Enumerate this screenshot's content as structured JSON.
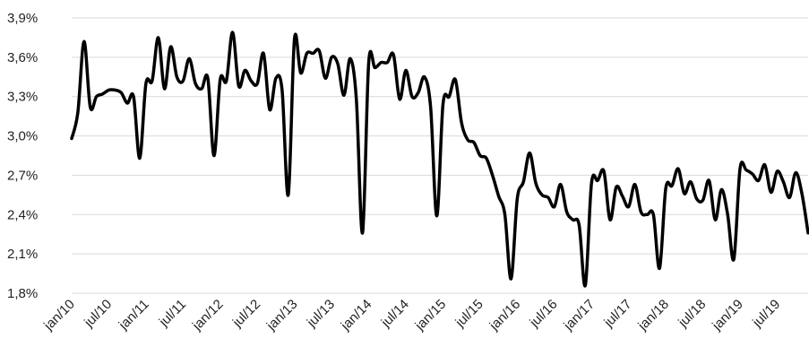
{
  "chart_data": {
    "type": "line",
    "title": "",
    "xlabel": "",
    "ylabel": "",
    "ylim": [
      1.8,
      3.9
    ],
    "y_ticks": [
      "1,8%",
      "2,1%",
      "2,4%",
      "2,7%",
      "3,0%",
      "3,3%",
      "3,6%",
      "3,9%"
    ],
    "y_tick_values": [
      1.8,
      2.1,
      2.4,
      2.7,
      3.0,
      3.3,
      3.6,
      3.9
    ],
    "x_ticks": [
      "jan/10",
      "jul/10",
      "jan/11",
      "jul/11",
      "jan/12",
      "jul/12",
      "jan/13",
      "jul/13",
      "jan/14",
      "jul/14",
      "jan/15",
      "jul/15",
      "jan/16",
      "jul/16",
      "jan/17",
      "jul/17",
      "jan/18",
      "jul/18",
      "jan/19",
      "jul/19"
    ],
    "x_tick_index": [
      0,
      6,
      12,
      18,
      24,
      30,
      36,
      42,
      48,
      54,
      60,
      66,
      72,
      78,
      84,
      90,
      96,
      102,
      108,
      114
    ],
    "grid": "horizontal",
    "legend": "none",
    "series": [
      {
        "values": [
          2.98,
          3.18,
          3.72,
          3.22,
          3.3,
          3.32,
          3.35,
          3.35,
          3.33,
          3.25,
          3.3,
          2.83,
          3.4,
          3.42,
          3.75,
          3.36,
          3.68,
          3.45,
          3.42,
          3.59,
          3.4,
          3.36,
          3.44,
          2.85,
          3.43,
          3.42,
          3.79,
          3.38,
          3.5,
          3.42,
          3.4,
          3.63,
          3.2,
          3.44,
          3.35,
          2.55,
          3.74,
          3.48,
          3.63,
          3.63,
          3.65,
          3.44,
          3.6,
          3.55,
          3.31,
          3.59,
          3.28,
          2.26,
          3.56,
          3.52,
          3.56,
          3.56,
          3.62,
          3.28,
          3.5,
          3.3,
          3.33,
          3.45,
          3.22,
          2.39,
          3.24,
          3.3,
          3.43,
          3.1,
          2.97,
          2.95,
          2.85,
          2.83,
          2.7,
          2.54,
          2.4,
          1.91,
          2.52,
          2.65,
          2.87,
          2.64,
          2.55,
          2.53,
          2.46,
          2.63,
          2.42,
          2.36,
          2.32,
          1.86,
          2.64,
          2.66,
          2.73,
          2.36,
          2.61,
          2.54,
          2.46,
          2.63,
          2.42,
          2.4,
          2.4,
          1.99,
          2.6,
          2.62,
          2.75,
          2.56,
          2.65,
          2.52,
          2.51,
          2.66,
          2.36,
          2.59,
          2.4,
          2.06,
          2.75,
          2.74,
          2.71,
          2.66,
          2.78,
          2.57,
          2.73,
          2.65,
          2.53,
          2.72,
          2.56,
          2.26
        ]
      }
    ]
  }
}
